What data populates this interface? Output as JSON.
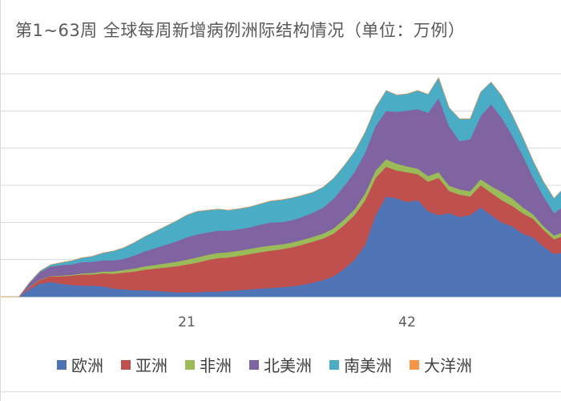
{
  "chart_data": {
    "type": "area",
    "stacked": true,
    "title": "第1~63周 全球每周新增病例洲际结构情况（单位：万例）",
    "x": [
      1,
      2,
      3,
      4,
      5,
      6,
      7,
      8,
      9,
      10,
      11,
      12,
      13,
      14,
      15,
      16,
      17,
      18,
      19,
      20,
      21,
      22,
      23,
      24,
      25,
      26,
      27,
      28,
      29,
      30,
      31,
      32,
      33,
      34,
      35,
      36,
      37,
      38,
      39,
      40,
      41,
      42,
      43,
      44,
      45,
      46,
      47,
      48,
      49,
      50,
      51,
      52,
      53,
      54,
      55,
      56,
      57
    ],
    "x_tick_labels": [
      "21",
      "42"
    ],
    "x_ticks": [
      21,
      42
    ],
    "ylim": [
      0,
      600
    ],
    "grid": true,
    "legend_position": "bottom",
    "series": [
      {
        "name": "欧洲",
        "color": "#4f74b6",
        "values": [
          0,
          0,
          0,
          0,
          0,
          20,
          35,
          40,
          35,
          32,
          30,
          30,
          28,
          22,
          20,
          18,
          18,
          16,
          14,
          12,
          12,
          12,
          14,
          14,
          16,
          18,
          20,
          22,
          24,
          26,
          28,
          32,
          38,
          45,
          55,
          75,
          100,
          140,
          220,
          270,
          265,
          255,
          260,
          230,
          220,
          225,
          215,
          220,
          240,
          220,
          200,
          190,
          170,
          160,
          135,
          115,
          120
        ]
      },
      {
        "name": "亚洲",
        "color": "#c0504d",
        "values": [
          0,
          0,
          0,
          0,
          0,
          5,
          10,
          15,
          20,
          25,
          30,
          30,
          35,
          40,
          45,
          50,
          55,
          60,
          65,
          70,
          75,
          80,
          85,
          90,
          90,
          92,
          95,
          98,
          100,
          102,
          105,
          108,
          110,
          112,
          115,
          118,
          120,
          120,
          100,
          80,
          75,
          80,
          70,
          80,
          100,
          60,
          60,
          50,
          60,
          60,
          60,
          55,
          55,
          50,
          45,
          40,
          45
        ]
      },
      {
        "name": "非洲",
        "color": "#9bbb59",
        "values": [
          0,
          0,
          0,
          0,
          0,
          1,
          1,
          1,
          2,
          2,
          3,
          4,
          5,
          6,
          7,
          8,
          9,
          10,
          11,
          12,
          13,
          14,
          14,
          14,
          14,
          14,
          14,
          14,
          14,
          13,
          13,
          13,
          13,
          13,
          14,
          15,
          16,
          18,
          20,
          20,
          18,
          16,
          15,
          15,
          15,
          14,
          14,
          14,
          16,
          18,
          22,
          20,
          16,
          12,
          10,
          10,
          10
        ]
      },
      {
        "name": "北美洲",
        "color": "#8064a2",
        "values": [
          0,
          0,
          0,
          0,
          0,
          10,
          20,
          25,
          28,
          28,
          30,
          30,
          30,
          30,
          30,
          35,
          40,
          45,
          50,
          55,
          60,
          62,
          60,
          60,
          58,
          58,
          58,
          60,
          62,
          60,
          60,
          62,
          65,
          70,
          80,
          90,
          100,
          110,
          120,
          130,
          140,
          150,
          160,
          170,
          200,
          160,
          130,
          140,
          170,
          220,
          200,
          170,
          140,
          100,
          80,
          60,
          70
        ]
      },
      {
        "name": "南美洲",
        "color": "#4bacc6",
        "values": [
          0,
          0,
          0,
          0,
          0,
          2,
          3,
          5,
          7,
          10,
          12,
          15,
          20,
          25,
          30,
          35,
          40,
          45,
          50,
          55,
          60,
          62,
          60,
          58,
          55,
          55,
          55,
          56,
          58,
          60,
          60,
          58,
          55,
          55,
          55,
          55,
          55,
          55,
          50,
          55,
          45,
          45,
          50,
          50,
          55,
          50,
          60,
          55,
          65,
          60,
          60,
          55,
          50,
          45,
          40,
          40,
          50
        ]
      },
      {
        "name": "大洋洲",
        "color": "#f79646",
        "values": [
          0,
          0,
          0,
          0,
          0,
          0,
          0,
          0,
          0,
          0,
          0,
          0,
          0,
          0,
          0,
          0,
          0,
          0,
          0,
          0,
          0,
          0,
          0,
          0,
          0,
          0,
          0,
          0,
          0,
          0,
          0,
          0,
          0,
          0,
          0,
          0,
          0,
          0,
          0,
          0,
          0,
          0,
          0,
          0,
          0,
          0,
          0,
          0,
          0,
          0,
          0,
          0,
          0,
          0,
          0,
          0,
          0
        ]
      }
    ]
  }
}
